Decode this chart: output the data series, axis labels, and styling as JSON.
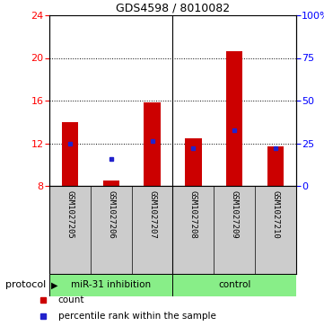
{
  "title": "GDS4598 / 8010082",
  "samples": [
    "GSM1027205",
    "GSM1027206",
    "GSM1027207",
    "GSM1027208",
    "GSM1027209",
    "GSM1027210"
  ],
  "count_values": [
    14.0,
    8.5,
    15.8,
    12.5,
    20.6,
    11.7
  ],
  "percentile_values": [
    12.0,
    10.5,
    12.2,
    11.5,
    13.2,
    11.5
  ],
  "baseline": 8.0,
  "ylim_left": [
    8,
    24
  ],
  "ylim_right": [
    0,
    100
  ],
  "yticks_left": [
    8,
    12,
    16,
    20,
    24
  ],
  "yticks_right": [
    0,
    25,
    50,
    75,
    100
  ],
  "ytick_labels_right": [
    "0",
    "25",
    "50",
    "75",
    "100%"
  ],
  "dotted_lines": [
    12,
    16,
    20
  ],
  "group_labels": [
    "miR-31 inhibition",
    "control"
  ],
  "bar_color": "#cc0000",
  "blue_color": "#2222cc",
  "label_bg": "#cccccc",
  "group_bg": "#88ee88",
  "bar_width": 0.4,
  "legend_count": "count",
  "legend_pct": "percentile rank within the sample",
  "protocol_label": "protocol"
}
